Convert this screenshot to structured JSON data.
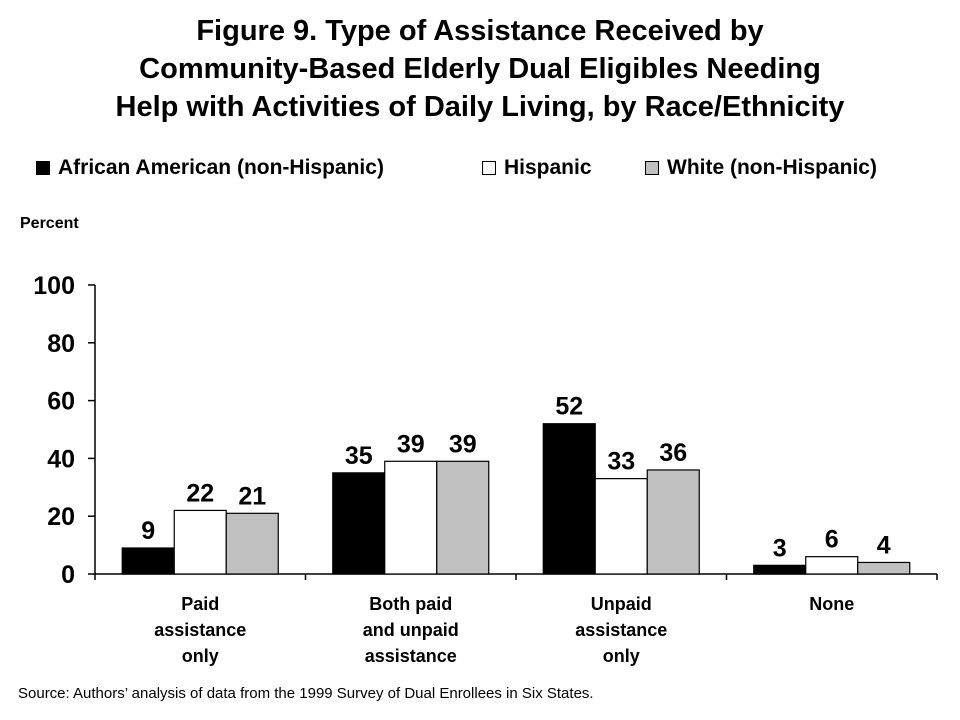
{
  "title": {
    "line1": "Figure 9. Type of Assistance Received by",
    "line2": "Community-Based Elderly Dual Eligibles Needing",
    "line3": "Help with Activities of Daily Living, by Race/Ethnicity"
  },
  "source": "Source: Authors’ analysis of data from the 1999 Survey of Dual Enrollees in Six States.",
  "chart_data": {
    "type": "bar",
    "ylabel": "Percent",
    "xlabel": "",
    "ylim": [
      0,
      100
    ],
    "yticks": [
      0,
      20,
      40,
      60,
      80,
      100
    ],
    "grid": false,
    "legend_position": "top",
    "categories": [
      [
        "Paid",
        "assistance",
        "only"
      ],
      [
        "Both paid",
        "and unpaid",
        "assistance"
      ],
      [
        "Unpaid",
        "assistance",
        "only"
      ],
      [
        "None"
      ]
    ],
    "series": [
      {
        "name": "African American (non-Hispanic)",
        "color": "#000000",
        "values": [
          9,
          35,
          52,
          3
        ]
      },
      {
        "name": "Hispanic",
        "color": "#ffffff",
        "values": [
          22,
          39,
          33,
          6
        ]
      },
      {
        "name": "White (non-Hispanic)",
        "color": "#c0c0c0",
        "values": [
          21,
          39,
          36,
          4
        ]
      }
    ]
  }
}
